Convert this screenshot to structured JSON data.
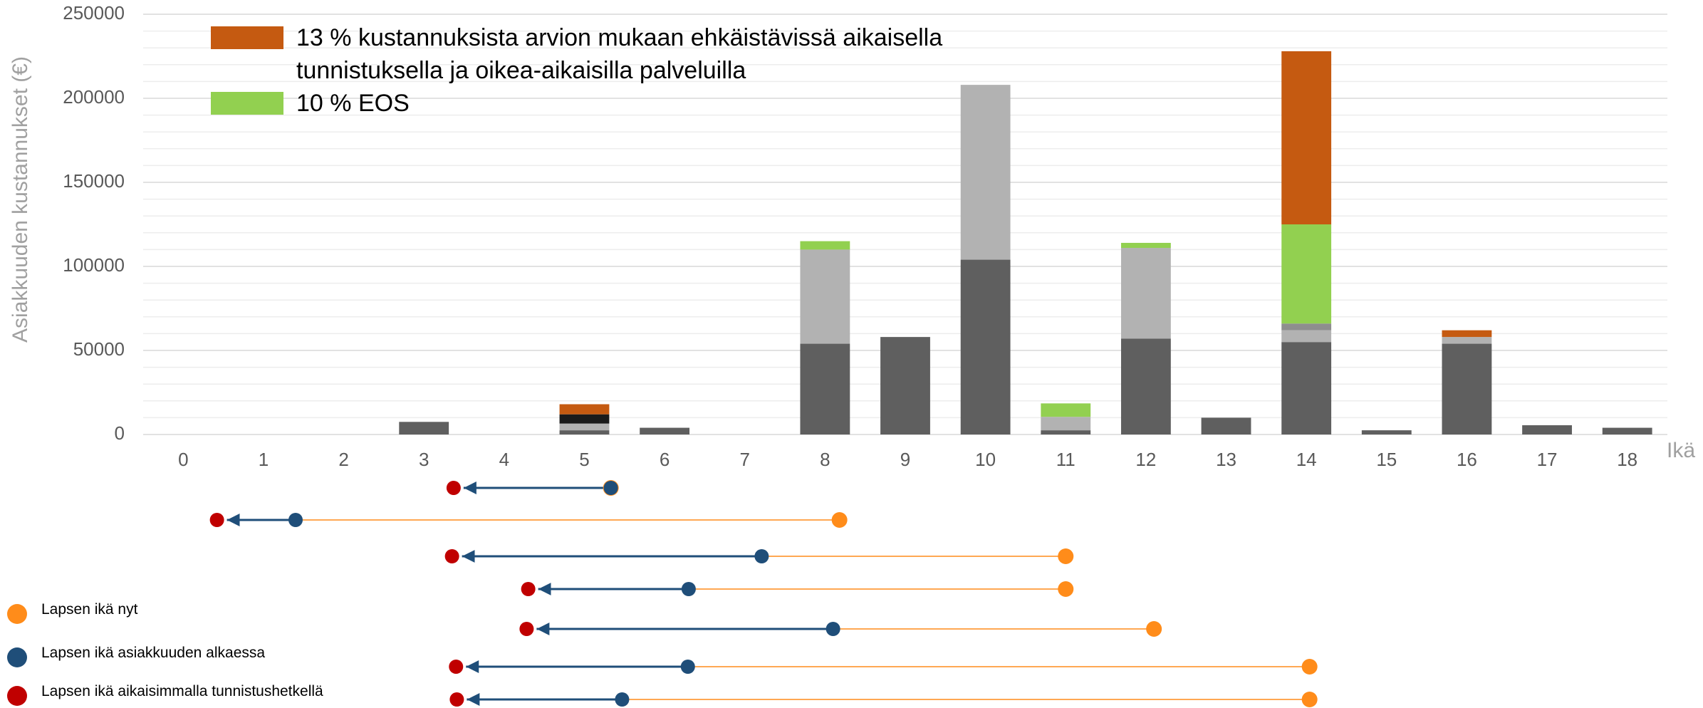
{
  "chart_data": [
    {
      "type": "stacked_bar",
      "ylabel": "Asiakkuuden kustannukset (€)",
      "xlabel": "Ikä",
      "categories": [
        "0",
        "1",
        "2",
        "3",
        "4",
        "5",
        "6",
        "7",
        "8",
        "9",
        "10",
        "11",
        "12",
        "13",
        "14",
        "15",
        "16",
        "17",
        "18"
      ],
      "ylim": [
        0,
        250000
      ],
      "yticks": [
        0,
        50000,
        100000,
        150000,
        200000,
        250000
      ],
      "grid": true,
      "minor_grid": true,
      "legend": "top-left",
      "series": [
        {
          "color": "#5f5f5f",
          "values": [
            null,
            null,
            null,
            7500,
            null,
            2500,
            4000,
            null,
            54000,
            58000,
            104000,
            2500,
            57000,
            10000,
            55000,
            2500,
            54000,
            5500,
            4000
          ]
        },
        {
          "color": "#b2b2b2",
          "values": [
            null,
            null,
            null,
            null,
            null,
            4000,
            null,
            null,
            56000,
            null,
            104000,
            8000,
            54000,
            null,
            7000,
            null,
            4000,
            null,
            null
          ]
        },
        {
          "color": "#8e8e8e",
          "values": [
            null,
            null,
            null,
            null,
            null,
            null,
            null,
            null,
            null,
            null,
            null,
            null,
            null,
            null,
            4000,
            null,
            null,
            null,
            null
          ]
        },
        {
          "color": "#1b1b1b",
          "values": [
            null,
            null,
            null,
            null,
            null,
            5500,
            null,
            null,
            null,
            null,
            null,
            null,
            null,
            null,
            null,
            null,
            null,
            null,
            null
          ]
        },
        {
          "name": "10 % EOS",
          "color": "#92d050",
          "values": [
            null,
            null,
            null,
            null,
            null,
            null,
            null,
            null,
            5000,
            null,
            null,
            8000,
            3000,
            null,
            59000,
            null,
            null,
            null,
            null
          ]
        },
        {
          "name": "13 % kustannuksista arvion mukaan ehkäistävissä aikaisella tunnistuksella ja oikea-aikaisilla palveluilla",
          "color": "#c55a11",
          "values": [
            null,
            null,
            null,
            null,
            null,
            6000,
            null,
            null,
            null,
            null,
            null,
            null,
            null,
            null,
            103000,
            null,
            4000,
            null,
            null
          ]
        }
      ]
    },
    {
      "type": "dumbbell",
      "xlim": [
        -0.5,
        18.5
      ],
      "legend": "bottom-left",
      "series": [
        {
          "name": "Lapsen ikä nyt",
          "color": "#ff8c1a",
          "values": [
            5.33,
            8.18,
            11.0,
            11.0,
            12.1,
            14.04,
            14.04
          ]
        },
        {
          "name": "Lapsen ikä asiakkuuden alkaessa",
          "color": "#1f4e79",
          "values": [
            5.33,
            1.4,
            7.21,
            6.3,
            8.1,
            6.29,
            5.47
          ]
        },
        {
          "name": "Lapsen ikä aikaisimmalla tunnistushetkellä",
          "color": "#c00000",
          "values": [
            3.37,
            0.42,
            3.35,
            4.3,
            4.28,
            3.4,
            3.41
          ]
        }
      ]
    }
  ]
}
